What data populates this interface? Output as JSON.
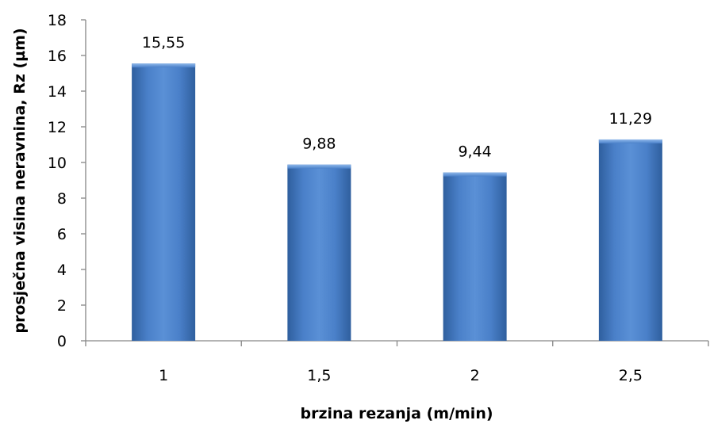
{
  "chart_data": {
    "type": "bar",
    "categories": [
      "1",
      "1,5",
      "2",
      "2,5"
    ],
    "values": [
      15.55,
      9.88,
      9.44,
      11.29
    ],
    "value_labels": [
      "15,55",
      "9,88",
      "9,44",
      "11,29"
    ],
    "xlabel": "brzina rezanja (m/min)",
    "ylabel": "prosječna visina neravnina, Rz (µm)",
    "ylim": [
      0,
      18
    ],
    "yticks": [
      0,
      2,
      4,
      6,
      8,
      10,
      12,
      14,
      16,
      18
    ],
    "ytick_labels": [
      "0",
      "2",
      "4",
      "6",
      "8",
      "10",
      "12",
      "14",
      "16",
      "18"
    ],
    "grid": false,
    "legend": "none",
    "bar_color": "#4A7FC8"
  }
}
